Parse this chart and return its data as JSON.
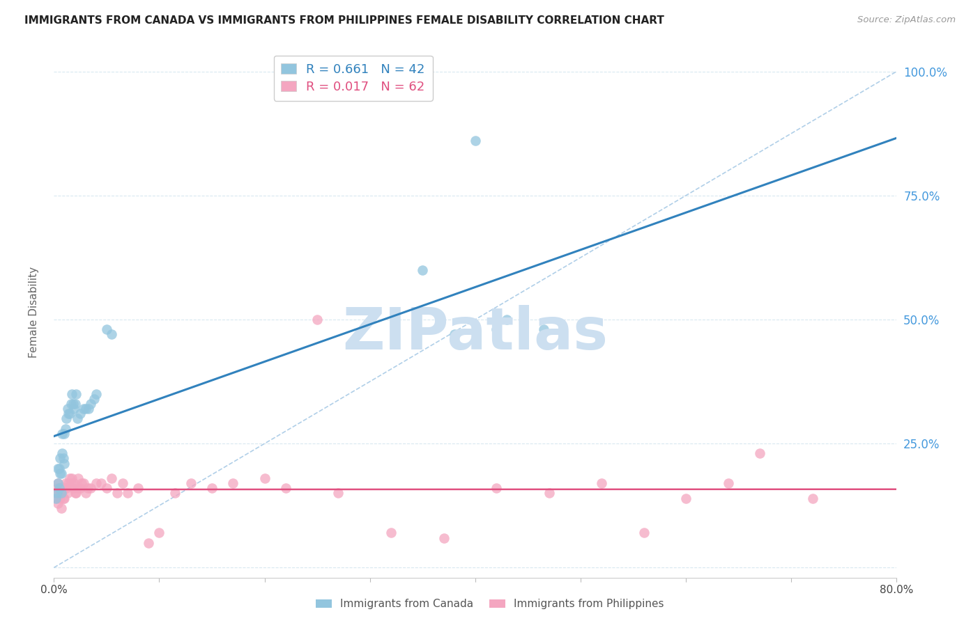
{
  "title": "IMMIGRANTS FROM CANADA VS IMMIGRANTS FROM PHILIPPINES FEMALE DISABILITY CORRELATION CHART",
  "source": "Source: ZipAtlas.com",
  "xlabel_canada": "Immigrants from Canada",
  "xlabel_philippines": "Immigrants from Philippines",
  "ylabel": "Female Disability",
  "canada_R": 0.661,
  "canada_N": 42,
  "philippines_R": 0.017,
  "philippines_N": 62,
  "canada_color": "#92c5de",
  "philippines_color": "#f4a6c0",
  "canada_line_color": "#3182bd",
  "philippines_line_color": "#e05080",
  "ref_line_color": "#b0cfe8",
  "canada_x": [
    0.002,
    0.003,
    0.004,
    0.004,
    0.005,
    0.005,
    0.006,
    0.006,
    0.007,
    0.007,
    0.008,
    0.008,
    0.009,
    0.01,
    0.01,
    0.011,
    0.012,
    0.013,
    0.014,
    0.015,
    0.016,
    0.017,
    0.018,
    0.019,
    0.02,
    0.021,
    0.022,
    0.025,
    0.028,
    0.03,
    0.033,
    0.035,
    0.038,
    0.04,
    0.05,
    0.055,
    0.35,
    0.4,
    0.43,
    0.465,
    0.38,
    0.42
  ],
  "canada_y": [
    0.14,
    0.15,
    0.17,
    0.2,
    0.16,
    0.2,
    0.19,
    0.22,
    0.15,
    0.19,
    0.23,
    0.27,
    0.22,
    0.21,
    0.27,
    0.28,
    0.3,
    0.32,
    0.31,
    0.31,
    0.33,
    0.35,
    0.33,
    0.32,
    0.33,
    0.35,
    0.3,
    0.31,
    0.32,
    0.32,
    0.32,
    0.33,
    0.34,
    0.35,
    0.48,
    0.47,
    0.6,
    0.86,
    0.5,
    0.48,
    0.47,
    0.48
  ],
  "philippines_x": [
    0.002,
    0.003,
    0.003,
    0.004,
    0.004,
    0.005,
    0.005,
    0.006,
    0.006,
    0.007,
    0.007,
    0.008,
    0.009,
    0.01,
    0.01,
    0.011,
    0.012,
    0.013,
    0.014,
    0.015,
    0.016,
    0.017,
    0.018,
    0.019,
    0.02,
    0.021,
    0.022,
    0.023,
    0.025,
    0.026,
    0.028,
    0.03,
    0.032,
    0.035,
    0.04,
    0.045,
    0.05,
    0.055,
    0.06,
    0.065,
    0.07,
    0.08,
    0.09,
    0.1,
    0.115,
    0.13,
    0.15,
    0.17,
    0.2,
    0.22,
    0.25,
    0.27,
    0.32,
    0.37,
    0.42,
    0.47,
    0.52,
    0.56,
    0.6,
    0.64,
    0.67,
    0.72
  ],
  "philippines_y": [
    0.15,
    0.14,
    0.16,
    0.17,
    0.13,
    0.16,
    0.15,
    0.14,
    0.16,
    0.15,
    0.12,
    0.15,
    0.14,
    0.16,
    0.14,
    0.17,
    0.16,
    0.15,
    0.17,
    0.18,
    0.17,
    0.18,
    0.16,
    0.17,
    0.15,
    0.15,
    0.16,
    0.18,
    0.16,
    0.17,
    0.17,
    0.15,
    0.16,
    0.16,
    0.17,
    0.17,
    0.16,
    0.18,
    0.15,
    0.17,
    0.15,
    0.16,
    0.05,
    0.07,
    0.15,
    0.17,
    0.16,
    0.17,
    0.18,
    0.16,
    0.5,
    0.15,
    0.07,
    0.06,
    0.16,
    0.15,
    0.17,
    0.07,
    0.14,
    0.17,
    0.23,
    0.14
  ],
  "xlim": [
    0.0,
    0.8
  ],
  "ylim": [
    -0.02,
    1.05
  ],
  "background_color": "#ffffff",
  "watermark_text": "ZIPatlas",
  "watermark_color": "#ccdff0",
  "right_yticks": [
    0.0,
    0.25,
    0.5,
    0.75,
    1.0
  ],
  "right_ytick_labels": [
    "",
    "25.0%",
    "50.0%",
    "75.0%",
    "100.0%"
  ]
}
